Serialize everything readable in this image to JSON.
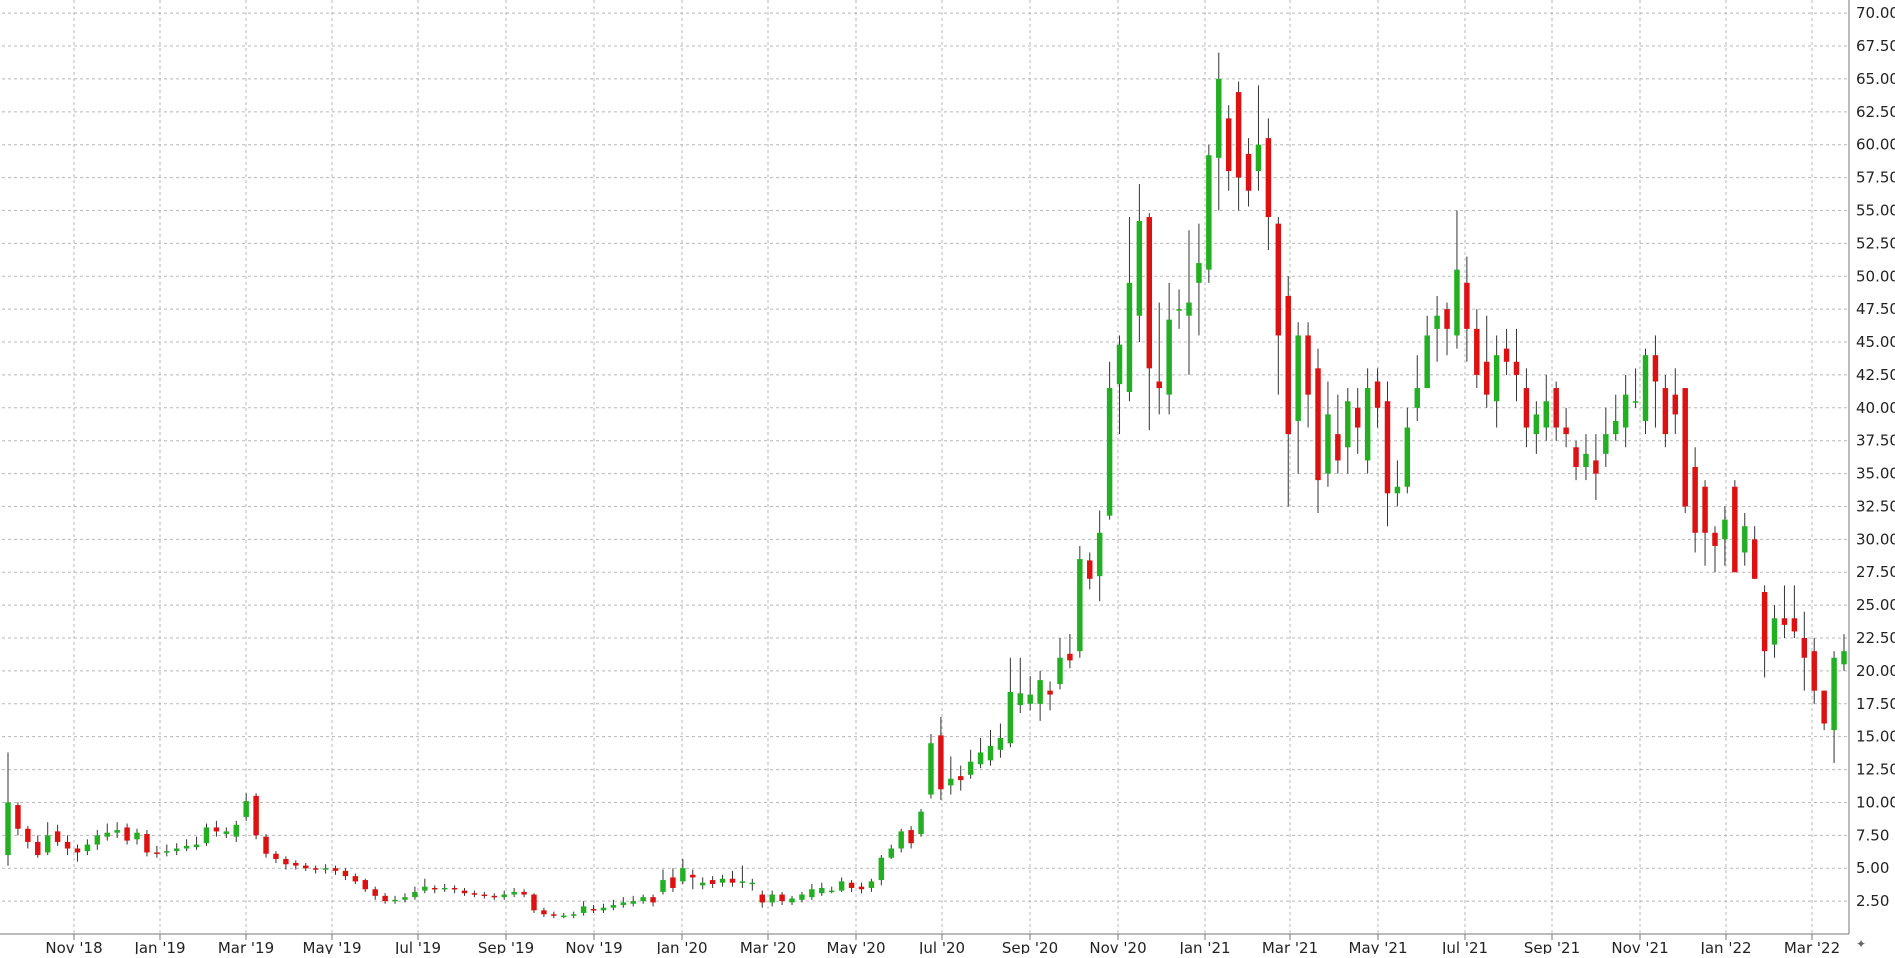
{
  "chart_data": {
    "type": "candlestick",
    "ylim": [
      0,
      71
    ],
    "y_ticks": [
      "2.50",
      "5.00",
      "7.50",
      "10.00",
      "12.50",
      "15.00",
      "17.50",
      "20.00",
      "22.50",
      "25.00",
      "27.50",
      "30.00",
      "32.50",
      "35.00",
      "37.50",
      "40.00",
      "42.50",
      "45.00",
      "47.50",
      "50.00",
      "52.50",
      "55.00",
      "57.50",
      "60.00",
      "62.50",
      "65.00",
      "67.50",
      "70.00"
    ],
    "x_ticks": [
      "Nov '18",
      "Jan '19",
      "Mar '19",
      "May '19",
      "Jul '19",
      "Sep '19",
      "Nov '19",
      "Jan '20",
      "Mar '20",
      "May '20",
      "Jul '20",
      "Sep '20",
      "Nov '20",
      "Jan '21",
      "Mar '21",
      "May '21",
      "Jul '21",
      "Sep '21",
      "Nov '21",
      "Jan '22",
      "Mar '22"
    ],
    "grid": true,
    "colors": {
      "up": "#22b022",
      "down": "#dd1111",
      "wick": "#333333",
      "grid": "#b8b8b8"
    },
    "candles": [
      [
        6.0,
        10.0,
        13.8,
        5.2
      ],
      [
        9.8,
        8.0,
        10.0,
        7.5
      ],
      [
        8.0,
        7.0,
        8.2,
        6.5
      ],
      [
        7.0,
        6.0,
        7.5,
        5.8
      ],
      [
        6.2,
        7.5,
        8.5,
        6.0
      ],
      [
        7.8,
        7.0,
        8.3,
        6.7
      ],
      [
        7.0,
        6.5,
        7.5,
        6.0
      ],
      [
        6.5,
        6.2,
        6.8,
        5.5
      ],
      [
        6.3,
        6.8,
        7.2,
        6.0
      ],
      [
        6.8,
        7.5,
        7.9,
        6.4
      ],
      [
        7.4,
        7.7,
        8.4,
        7.1
      ],
      [
        7.7,
        7.9,
        8.5,
        7.3
      ],
      [
        8.1,
        7.1,
        8.4,
        6.8
      ],
      [
        7.2,
        7.7,
        8.0,
        6.8
      ],
      [
        7.6,
        6.2,
        7.9,
        5.9
      ],
      [
        6.2,
        6.1,
        6.7,
        5.8
      ],
      [
        6.2,
        6.3,
        6.8,
        5.9
      ],
      [
        6.3,
        6.5,
        6.9,
        6.0
      ],
      [
        6.5,
        6.7,
        7.2,
        6.3
      ],
      [
        6.6,
        6.8,
        7.4,
        6.4
      ],
      [
        6.9,
        8.1,
        8.4,
        6.7
      ],
      [
        8.1,
        7.8,
        8.6,
        7.4
      ],
      [
        7.6,
        7.8,
        8.1,
        7.3
      ],
      [
        7.4,
        8.3,
        8.6,
        7.0
      ],
      [
        8.9,
        10.1,
        10.7,
        8.6
      ],
      [
        10.5,
        7.5,
        10.7,
        7.2
      ],
      [
        7.4,
        6.1,
        7.6,
        5.8
      ],
      [
        6.1,
        5.7,
        6.3,
        5.4
      ],
      [
        5.7,
        5.3,
        5.9,
        4.9
      ],
      [
        5.4,
        5.2,
        5.6,
        4.9
      ],
      [
        5.2,
        5.0,
        5.4,
        4.8
      ],
      [
        5.0,
        4.9,
        5.2,
        4.6
      ],
      [
        4.9,
        5.0,
        5.3,
        4.6
      ],
      [
        5.0,
        4.8,
        5.2,
        4.5
      ],
      [
        4.8,
        4.4,
        5.0,
        4.1
      ],
      [
        4.4,
        4.0,
        4.6,
        3.8
      ],
      [
        4.1,
        3.4,
        4.2,
        3.2
      ],
      [
        3.4,
        2.9,
        3.6,
        2.6
      ],
      [
        2.9,
        2.5,
        3.1,
        2.3
      ],
      [
        2.5,
        2.6,
        2.9,
        2.3
      ],
      [
        2.6,
        2.8,
        3.1,
        2.4
      ],
      [
        2.8,
        3.2,
        3.6,
        2.6
      ],
      [
        3.3,
        3.6,
        4.2,
        3.1
      ],
      [
        3.5,
        3.4,
        3.7,
        3.1
      ],
      [
        3.4,
        3.5,
        3.8,
        3.2
      ],
      [
        3.5,
        3.4,
        3.7,
        3.1
      ],
      [
        3.3,
        3.1,
        3.5,
        2.9
      ],
      [
        3.1,
        3.0,
        3.3,
        2.8
      ],
      [
        3.0,
        2.9,
        3.2,
        2.7
      ],
      [
        2.9,
        2.8,
        3.1,
        2.6
      ],
      [
        2.8,
        3.0,
        3.3,
        2.6
      ],
      [
        3.0,
        3.2,
        3.5,
        2.8
      ],
      [
        3.2,
        3.0,
        3.4,
        2.8
      ],
      [
        3.0,
        1.8,
        3.1,
        1.6
      ],
      [
        1.8,
        1.5,
        2.0,
        1.3
      ],
      [
        1.5,
        1.4,
        1.7,
        1.2
      ],
      [
        1.4,
        1.4,
        1.6,
        1.2
      ],
      [
        1.4,
        1.5,
        1.7,
        1.2
      ],
      [
        1.6,
        2.1,
        2.5,
        1.4
      ],
      [
        1.9,
        1.8,
        2.2,
        1.6
      ],
      [
        1.8,
        2.0,
        2.3,
        1.6
      ],
      [
        2.0,
        2.2,
        2.6,
        1.8
      ],
      [
        2.2,
        2.4,
        2.8,
        2.0
      ],
      [
        2.3,
        2.5,
        2.9,
        2.1
      ],
      [
        2.5,
        2.8,
        3.0,
        2.3
      ],
      [
        2.8,
        2.4,
        3.0,
        2.1
      ],
      [
        3.2,
        4.1,
        4.9,
        3.0
      ],
      [
        4.3,
        3.5,
        5.0,
        3.2
      ],
      [
        4.0,
        5.0,
        5.7,
        3.8
      ],
      [
        4.5,
        4.3,
        4.9,
        3.4
      ],
      [
        3.7,
        3.9,
        4.3,
        3.4
      ],
      [
        4.1,
        3.8,
        4.4,
        3.5
      ],
      [
        3.9,
        4.2,
        4.5,
        3.6
      ],
      [
        4.2,
        3.9,
        4.8,
        3.6
      ],
      [
        4.0,
        4.0,
        5.2,
        3.5
      ],
      [
        3.8,
        3.9,
        4.2,
        3.3
      ],
      [
        3.0,
        2.4,
        3.3,
        2.0
      ],
      [
        2.4,
        3.0,
        3.3,
        2.1
      ],
      [
        3.0,
        2.5,
        3.2,
        2.2
      ],
      [
        2.4,
        2.7,
        2.9,
        2.2
      ],
      [
        2.6,
        3.0,
        3.2,
        2.4
      ],
      [
        2.8,
        3.4,
        3.8,
        2.6
      ],
      [
        3.1,
        3.5,
        3.9,
        2.9
      ],
      [
        3.3,
        3.3,
        3.6,
        3.1
      ],
      [
        3.3,
        4.0,
        4.3,
        3.2
      ],
      [
        3.9,
        3.5,
        4.1,
        3.2
      ],
      [
        3.6,
        3.4,
        3.9,
        3.1
      ],
      [
        3.5,
        4.0,
        4.2,
        3.2
      ],
      [
        4.1,
        5.8,
        6.0,
        3.7
      ],
      [
        5.8,
        6.5,
        6.8,
        5.7
      ],
      [
        6.5,
        7.8,
        8.0,
        6.2
      ],
      [
        7.9,
        6.9,
        8.2,
        6.5
      ],
      [
        7.6,
        9.3,
        9.5,
        7.4
      ],
      [
        10.6,
        14.5,
        15.2,
        10.3
      ],
      [
        15.1,
        11.0,
        16.5,
        10.2
      ],
      [
        11.3,
        11.8,
        13.5,
        10.6
      ],
      [
        12.0,
        11.7,
        12.8,
        10.9
      ],
      [
        12.1,
        13.1,
        14.0,
        11.8
      ],
      [
        12.9,
        13.8,
        14.9,
        12.6
      ],
      [
        13.2,
        14.3,
        15.5,
        12.8
      ],
      [
        14.0,
        14.9,
        16.0,
        13.4
      ],
      [
        14.5,
        18.4,
        21.0,
        14.2
      ],
      [
        17.4,
        18.3,
        21.0,
        16.8
      ],
      [
        17.5,
        18.2,
        19.6,
        17.0
      ],
      [
        17.5,
        19.3,
        20.0,
        16.2
      ],
      [
        18.5,
        18.2,
        19.2,
        17.0
      ],
      [
        19.0,
        21.0,
        22.5,
        18.6
      ],
      [
        21.3,
        20.8,
        22.8,
        20.2
      ],
      [
        21.5,
        28.5,
        29.5,
        21.0
      ],
      [
        28.4,
        27.0,
        29.0,
        26.2
      ],
      [
        27.2,
        30.5,
        32.2,
        25.3
      ],
      [
        31.8,
        41.5,
        43.5,
        31.5
      ],
      [
        41.8,
        44.8,
        45.5,
        38.0
      ],
      [
        41.2,
        49.5,
        54.5,
        40.5
      ],
      [
        47.0,
        54.2,
        57.0,
        45.0
      ],
      [
        54.5,
        43.0,
        54.8,
        38.3
      ],
      [
        42.0,
        41.5,
        48.0,
        39.5
      ],
      [
        41.0,
        46.7,
        49.5,
        39.5
      ],
      [
        47.5,
        47.5,
        49.0,
        46.0
      ],
      [
        47.0,
        48.0,
        53.5,
        42.5
      ],
      [
        49.5,
        51.0,
        54.0,
        45.5
      ],
      [
        50.5,
        59.2,
        60.0,
        49.5
      ],
      [
        59.0,
        65.0,
        67.0,
        55.0
      ],
      [
        62.0,
        58.0,
        63.0,
        56.5
      ],
      [
        64.0,
        57.5,
        64.8,
        55.0
      ],
      [
        59.3,
        56.5,
        60.5,
        55.3
      ],
      [
        58.0,
        60.0,
        64.5,
        56.5
      ],
      [
        60.5,
        54.5,
        62.0,
        52.0
      ],
      [
        54.0,
        45.5,
        54.5,
        41.0
      ],
      [
        48.5,
        38.0,
        50.0,
        32.5
      ],
      [
        39.0,
        45.5,
        46.5,
        35.0
      ],
      [
        45.5,
        41.0,
        46.5,
        38.5
      ],
      [
        43.0,
        34.5,
        44.5,
        32.0
      ],
      [
        35.0,
        39.5,
        42.0,
        34.0
      ],
      [
        38.0,
        36.0,
        41.0,
        35.0
      ],
      [
        37.0,
        40.5,
        41.5,
        35.0
      ],
      [
        40.0,
        38.5,
        41.5,
        36.5
      ],
      [
        36.0,
        41.5,
        43.0,
        35.0
      ],
      [
        42.0,
        40.0,
        43.0,
        38.5
      ],
      [
        40.5,
        33.5,
        42.0,
        31.0
      ],
      [
        33.5,
        34.0,
        36.0,
        32.5
      ],
      [
        34.0,
        38.5,
        40.0,
        33.5
      ],
      [
        40.0,
        41.5,
        44.0,
        39.0
      ],
      [
        41.5,
        45.5,
        47.0,
        41.5
      ],
      [
        46.0,
        47.0,
        48.5,
        43.5
      ],
      [
        47.5,
        46.0,
        48.0,
        44.0
      ],
      [
        45.5,
        50.5,
        55.0,
        44.5
      ],
      [
        49.5,
        46.0,
        51.5,
        43.5
      ],
      [
        46.0,
        42.5,
        47.5,
        41.5
      ],
      [
        43.5,
        41.0,
        47.0,
        40.0
      ],
      [
        40.5,
        44.0,
        45.5,
        38.5
      ],
      [
        44.5,
        43.5,
        46.0,
        42.5
      ],
      [
        43.5,
        42.5,
        46.0,
        40.5
      ],
      [
        41.5,
        38.5,
        43.0,
        37.0
      ],
      [
        38.0,
        39.5,
        40.5,
        36.5
      ],
      [
        38.5,
        40.5,
        42.5,
        37.5
      ],
      [
        41.5,
        38.5,
        42.0,
        37.5
      ],
      [
        38.5,
        38.0,
        40.0,
        37.0
      ],
      [
        37.0,
        35.5,
        37.5,
        34.5
      ],
      [
        35.5,
        36.5,
        38.0,
        34.5
      ],
      [
        36.0,
        35.0,
        38.0,
        33.0
      ],
      [
        36.5,
        38.0,
        40.0,
        35.5
      ],
      [
        38.0,
        39.0,
        41.0,
        37.5
      ],
      [
        38.5,
        41.0,
        42.5,
        37.0
      ],
      [
        40.5,
        40.5,
        43.0,
        40.0
      ],
      [
        39.0,
        44.0,
        44.5,
        38.0
      ],
      [
        44.0,
        42.0,
        45.5,
        38.5
      ],
      [
        41.5,
        38.0,
        42.5,
        37.0
      ],
      [
        41.0,
        39.5,
        43.0,
        38.0
      ],
      [
        41.5,
        32.5,
        41.5,
        32.0
      ],
      [
        35.5,
        30.5,
        37.0,
        29.0
      ],
      [
        34.0,
        30.5,
        34.5,
        28.0
      ],
      [
        30.5,
        29.5,
        31.0,
        27.5
      ],
      [
        30.0,
        31.5,
        32.5,
        28.0
      ],
      [
        34.0,
        27.5,
        34.5,
        27.5
      ],
      [
        29.0,
        31.0,
        32.0,
        28.0
      ],
      [
        30.0,
        27.0,
        31.0,
        27.0
      ],
      [
        26.0,
        21.5,
        26.5,
        19.5
      ],
      [
        22.0,
        24.0,
        25.0,
        21.0
      ],
      [
        24.0,
        23.5,
        26.5,
        22.5
      ],
      [
        24.0,
        23.0,
        26.5,
        22.5
      ],
      [
        22.5,
        21.0,
        24.5,
        18.5
      ],
      [
        21.5,
        18.5,
        22.5,
        17.5
      ],
      [
        18.5,
        16.0,
        18.5,
        15.5
      ],
      [
        15.5,
        21.0,
        21.5,
        13.0
      ],
      [
        20.5,
        21.5,
        22.8,
        20.0
      ]
    ]
  }
}
